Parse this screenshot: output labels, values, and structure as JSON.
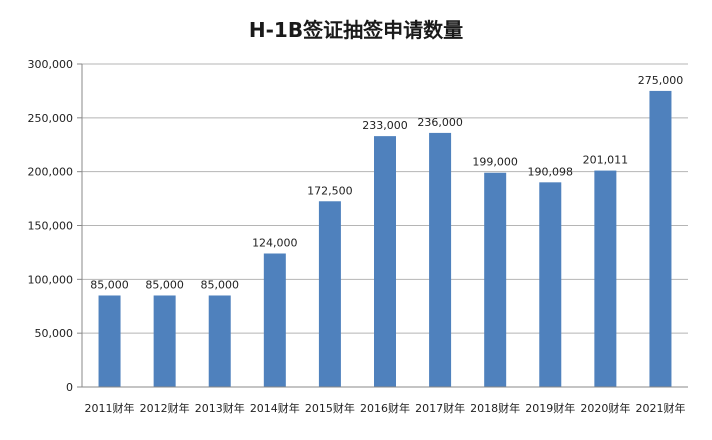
{
  "chart_data": {
    "type": "bar",
    "title": "H-1B签证抽签申请数量",
    "categories": [
      "2011财年",
      "2012财年",
      "2013财年",
      "2014财年",
      "2015财年",
      "2016财年",
      "2017财年",
      "2018财年",
      "2019财年",
      "2020财年",
      "2021财年"
    ],
    "values": [
      85000,
      85000,
      85000,
      124000,
      172500,
      233000,
      236000,
      199000,
      190098,
      201011,
      275000
    ],
    "data_labels": [
      "85,000",
      "85,000",
      "85,000",
      "124,000",
      "172,500",
      "233,000",
      "236,000",
      "199,000",
      "190,098",
      "201,011",
      "275,000"
    ],
    "y_ticks": [
      0,
      50000,
      100000,
      150000,
      200000,
      250000,
      300000
    ],
    "y_tick_labels": [
      "0",
      "50,000",
      "100,000",
      "150,000",
      "200,000",
      "250,000",
      "300,000"
    ],
    "ylim": [
      0,
      300000
    ],
    "xlabel": "",
    "ylabel": "",
    "grid": true,
    "legend": "none",
    "bar_color": "#4f81bd"
  }
}
